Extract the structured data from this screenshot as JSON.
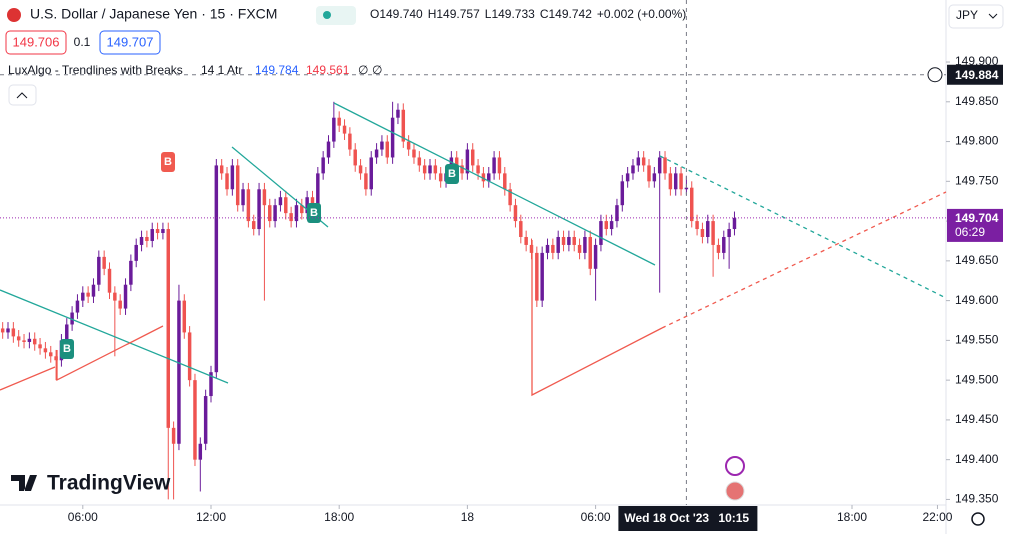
{
  "header": {
    "symbol": "U.S. Dollar / Japanese Yen · 15 · FXCM",
    "ohlc": [
      "O149.740",
      "H149.757",
      "L149.733",
      "C149.742",
      "+0.002 (+0.00%)"
    ],
    "sell": "149.706",
    "spread": "0.1",
    "buy": "149.707",
    "currency": "JPY"
  },
  "indicator": {
    "name": "LuxAlgo - Trendlines with Breaks",
    "params": "14 1 Atr",
    "values": [
      "149.784",
      "149.561",
      "∅",
      "∅"
    ]
  },
  "break_labels": [
    "B",
    "B",
    "B",
    "B"
  ],
  "logo": "TradingView",
  "chart_data": {
    "type": "candlestick",
    "up_color": "#6a1b9a",
    "down_color": "#ef5350",
    "grid": false,
    "xlim": [
      -0.5,
      176.6
    ],
    "ylim": [
      149.343,
      149.978
    ],
    "xticks": [
      {
        "value": 15,
        "label": "06:00"
      },
      {
        "value": 39,
        "label": "12:00"
      },
      {
        "value": 63,
        "label": "18:00"
      },
      {
        "value": 87,
        "label": "18"
      },
      {
        "value": 111,
        "label": "06:00"
      },
      {
        "value": 159,
        "label": "18:00"
      },
      {
        "value": 175,
        "label": "22:00"
      }
    ],
    "yticks": [
      {
        "value": 149.9,
        "label": "149.900"
      },
      {
        "value": 149.85,
        "label": "149.850"
      },
      {
        "value": 149.8,
        "label": "149.800"
      },
      {
        "value": 149.75,
        "label": "149.750"
      },
      {
        "value": 149.7,
        "label": "149.700"
      },
      {
        "value": 149.65,
        "label": "149.650"
      },
      {
        "value": 149.6,
        "label": "149.600"
      },
      {
        "value": 149.55,
        "label": "149.550"
      },
      {
        "value": 149.5,
        "label": "149.500"
      },
      {
        "value": 149.45,
        "label": "149.450"
      },
      {
        "value": 149.4,
        "label": "149.400"
      },
      {
        "value": 149.35,
        "label": "149.350"
      }
    ],
    "crosshair": {
      "price": {
        "value": 149.884,
        "label": "149.884"
      },
      "index": 128,
      "date": "Wed 18 Oct '23",
      "time": "10:15"
    },
    "last_price": {
      "value": 149.704,
      "label": "149.704",
      "countdown": "06:29"
    },
    "ohlc": [
      [
        149.565,
        149.573,
        149.552,
        149.56
      ],
      [
        149.56,
        149.573,
        149.552,
        149.565
      ],
      [
        149.565,
        149.573,
        149.547,
        149.555
      ],
      [
        149.555,
        149.563,
        149.542,
        149.55
      ],
      [
        149.55,
        149.558,
        149.54,
        149.548
      ],
      [
        149.548,
        149.56,
        149.54,
        149.552
      ],
      [
        149.552,
        149.56,
        149.537,
        149.545
      ],
      [
        149.545,
        149.553,
        149.532,
        149.54
      ],
      [
        149.54,
        149.548,
        149.527,
        149.535
      ],
      [
        149.535,
        149.543,
        149.522,
        149.53
      ],
      [
        149.53,
        149.538,
        149.5,
        149.525
      ],
      [
        149.525,
        149.558,
        149.517,
        149.55
      ],
      [
        149.55,
        149.578,
        149.542,
        149.57
      ],
      [
        149.57,
        149.593,
        149.562,
        149.585
      ],
      [
        149.585,
        149.608,
        149.577,
        149.6
      ],
      [
        149.6,
        149.618,
        149.592,
        149.61
      ],
      [
        149.61,
        149.618,
        149.597,
        149.605
      ],
      [
        149.605,
        149.628,
        149.597,
        149.62
      ],
      [
        149.62,
        149.663,
        149.612,
        149.655
      ],
      [
        149.655,
        149.663,
        149.632,
        149.64
      ],
      [
        149.64,
        149.648,
        149.602,
        149.61
      ],
      [
        149.61,
        149.618,
        149.53,
        149.6
      ],
      [
        149.6,
        149.608,
        149.582,
        149.59
      ],
      [
        149.59,
        149.628,
        149.582,
        149.62
      ],
      [
        149.62,
        149.658,
        149.612,
        149.65
      ],
      [
        149.65,
        149.678,
        149.642,
        149.67
      ],
      [
        149.67,
        149.688,
        149.662,
        149.68
      ],
      [
        149.68,
        149.688,
        149.667,
        149.675
      ],
      [
        149.675,
        149.698,
        149.667,
        149.69
      ],
      [
        149.69,
        149.698,
        149.677,
        149.685
      ],
      [
        149.685,
        149.698,
        149.677,
        149.69
      ],
      [
        149.69,
        149.698,
        149.35,
        149.44
      ],
      [
        149.44,
        149.448,
        149.35,
        149.42
      ],
      [
        149.42,
        149.62,
        149.412,
        149.6
      ],
      [
        149.6,
        149.608,
        149.552,
        149.56
      ],
      [
        149.56,
        149.568,
        149.492,
        149.5
      ],
      [
        149.5,
        149.508,
        149.392,
        149.4
      ],
      [
        149.4,
        149.428,
        149.36,
        149.42
      ],
      [
        149.42,
        149.488,
        149.412,
        149.48
      ],
      [
        149.48,
        149.518,
        149.472,
        149.51
      ],
      [
        149.51,
        149.778,
        149.502,
        149.77
      ],
      [
        149.77,
        149.778,
        149.752,
        149.76
      ],
      [
        149.76,
        149.768,
        149.732,
        149.74
      ],
      [
        149.74,
        149.778,
        149.732,
        149.77
      ],
      [
        149.77,
        149.778,
        149.712,
        149.72
      ],
      [
        149.72,
        149.748,
        149.712,
        149.74
      ],
      [
        149.74,
        149.748,
        149.692,
        149.7
      ],
      [
        149.7,
        149.708,
        149.682,
        149.69
      ],
      [
        149.69,
        149.748,
        149.682,
        149.74
      ],
      [
        149.74,
        149.748,
        149.6,
        149.72
      ],
      [
        149.72,
        149.728,
        149.692,
        149.7
      ],
      [
        149.7,
        149.728,
        149.692,
        149.72
      ],
      [
        149.72,
        149.738,
        149.712,
        149.73
      ],
      [
        149.73,
        149.738,
        149.702,
        149.71
      ],
      [
        149.71,
        149.718,
        149.692,
        149.7
      ],
      [
        149.7,
        149.728,
        149.692,
        149.72
      ],
      [
        149.72,
        149.728,
        149.702,
        149.71
      ],
      [
        149.71,
        149.738,
        149.702,
        149.73
      ],
      [
        149.73,
        149.738,
        149.712,
        149.72
      ],
      [
        149.72,
        149.768,
        149.712,
        149.76
      ],
      [
        149.76,
        149.788,
        149.752,
        149.78
      ],
      [
        149.78,
        149.808,
        149.772,
        149.8
      ],
      [
        149.8,
        149.85,
        149.792,
        149.83
      ],
      [
        149.83,
        149.838,
        149.812,
        149.82
      ],
      [
        149.82,
        149.828,
        149.802,
        149.81
      ],
      [
        149.81,
        149.818,
        149.782,
        149.79
      ],
      [
        149.79,
        149.798,
        149.762,
        149.77
      ],
      [
        149.77,
        149.778,
        149.752,
        149.76
      ],
      [
        149.76,
        149.768,
        149.732,
        149.74
      ],
      [
        149.74,
        149.788,
        149.732,
        149.78
      ],
      [
        149.78,
        149.798,
        149.772,
        149.79
      ],
      [
        149.79,
        149.808,
        149.782,
        149.8
      ],
      [
        149.8,
        149.808,
        149.772,
        149.78
      ],
      [
        149.78,
        149.85,
        149.772,
        149.83
      ],
      [
        149.83,
        149.848,
        149.822,
        149.84
      ],
      [
        149.84,
        149.848,
        149.792,
        149.8
      ],
      [
        149.8,
        149.808,
        149.782,
        149.79
      ],
      [
        149.79,
        149.798,
        149.772,
        149.78
      ],
      [
        149.78,
        149.788,
        149.762,
        149.77
      ],
      [
        149.77,
        149.778,
        149.752,
        149.76
      ],
      [
        149.76,
        149.778,
        149.752,
        149.77
      ],
      [
        149.77,
        149.778,
        149.752,
        149.76
      ],
      [
        149.76,
        149.768,
        149.742,
        149.75
      ],
      [
        149.75,
        149.768,
        149.742,
        149.76
      ],
      [
        149.76,
        149.788,
        149.752,
        149.78
      ],
      [
        149.78,
        149.788,
        149.762,
        149.77
      ],
      [
        149.77,
        149.778,
        149.752,
        149.76
      ],
      [
        149.76,
        149.798,
        149.752,
        149.79
      ],
      [
        149.79,
        149.798,
        149.762,
        149.77
      ],
      [
        149.77,
        149.778,
        149.752,
        149.76
      ],
      [
        149.76,
        149.768,
        149.742,
        149.75
      ],
      [
        149.75,
        149.768,
        149.742,
        149.76
      ],
      [
        149.76,
        149.788,
        149.752,
        149.78
      ],
      [
        149.78,
        149.788,
        149.752,
        149.76
      ],
      [
        149.76,
        149.768,
        149.732,
        149.74
      ],
      [
        149.74,
        149.748,
        149.712,
        149.72
      ],
      [
        149.72,
        149.728,
        149.692,
        149.7
      ],
      [
        149.7,
        149.708,
        149.672,
        149.68
      ],
      [
        149.68,
        149.688,
        149.662,
        149.67
      ],
      [
        149.67,
        149.678,
        149.652,
        149.66
      ],
      [
        149.66,
        149.668,
        149.592,
        149.6
      ],
      [
        149.6,
        149.668,
        149.592,
        149.66
      ],
      [
        149.66,
        149.678,
        149.652,
        149.67
      ],
      [
        149.67,
        149.678,
        149.652,
        149.66
      ],
      [
        149.66,
        149.688,
        149.652,
        149.68
      ],
      [
        149.68,
        149.688,
        149.662,
        149.67
      ],
      [
        149.67,
        149.688,
        149.662,
        149.68
      ],
      [
        149.68,
        149.688,
        149.662,
        149.67
      ],
      [
        149.67,
        149.678,
        149.652,
        149.66
      ],
      [
        149.66,
        149.688,
        149.652,
        149.68
      ],
      [
        149.68,
        149.688,
        149.632,
        149.64
      ],
      [
        149.64,
        149.678,
        149.6,
        149.67
      ],
      [
        149.67,
        149.708,
        149.662,
        149.7
      ],
      [
        149.7,
        149.708,
        149.682,
        149.69
      ],
      [
        149.69,
        149.708,
        149.682,
        149.7
      ],
      [
        149.7,
        149.728,
        149.692,
        149.72
      ],
      [
        149.72,
        149.758,
        149.712,
        149.75
      ],
      [
        149.75,
        149.768,
        149.742,
        149.76
      ],
      [
        149.76,
        149.778,
        149.752,
        149.77
      ],
      [
        149.77,
        149.788,
        149.762,
        149.78
      ],
      [
        149.78,
        149.788,
        149.762,
        149.77
      ],
      [
        149.77,
        149.778,
        149.742,
        149.75
      ],
      [
        149.75,
        149.768,
        149.742,
        149.76
      ],
      [
        149.76,
        149.788,
        149.61,
        149.78
      ],
      [
        149.78,
        149.788,
        149.752,
        149.76
      ],
      [
        149.76,
        149.768,
        149.732,
        149.74
      ],
      [
        149.74,
        149.768,
        149.732,
        149.76
      ],
      [
        149.76,
        149.768,
        149.732,
        149.74
      ],
      [
        149.74,
        149.757,
        149.733,
        149.742
      ],
      [
        149.742,
        149.75,
        149.692,
        149.7
      ],
      [
        149.7,
        149.708,
        149.682,
        149.69
      ],
      [
        149.69,
        149.698,
        149.672,
        149.68
      ],
      [
        149.68,
        149.708,
        149.672,
        149.7
      ],
      [
        149.7,
        149.708,
        149.63,
        149.67
      ],
      [
        149.67,
        149.678,
        149.652,
        149.66
      ],
      [
        149.66,
        149.688,
        149.652,
        149.68
      ],
      [
        149.68,
        149.698,
        149.64,
        149.69
      ],
      [
        149.69,
        149.712,
        149.682,
        149.704
      ]
    ]
  }
}
